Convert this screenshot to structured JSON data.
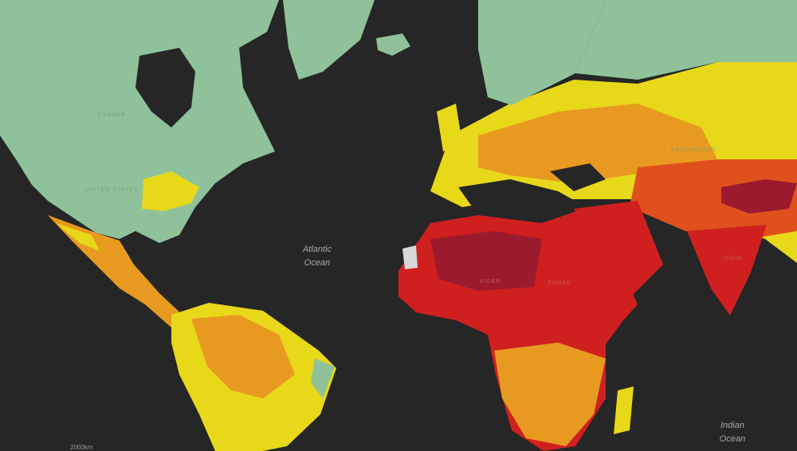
{
  "ocean_labels": [
    {
      "lines": [
        "Atlantic",
        "Ocean"
      ]
    },
    {
      "lines": [
        "Indian",
        "Ocean"
      ]
    }
  ],
  "country_labels": [
    "CANADA",
    "UNITED STATES",
    "NIGER",
    "SUDAN",
    "INDIA",
    "KAZAKHSTAN"
  ],
  "scale_label": "2000km"
}
